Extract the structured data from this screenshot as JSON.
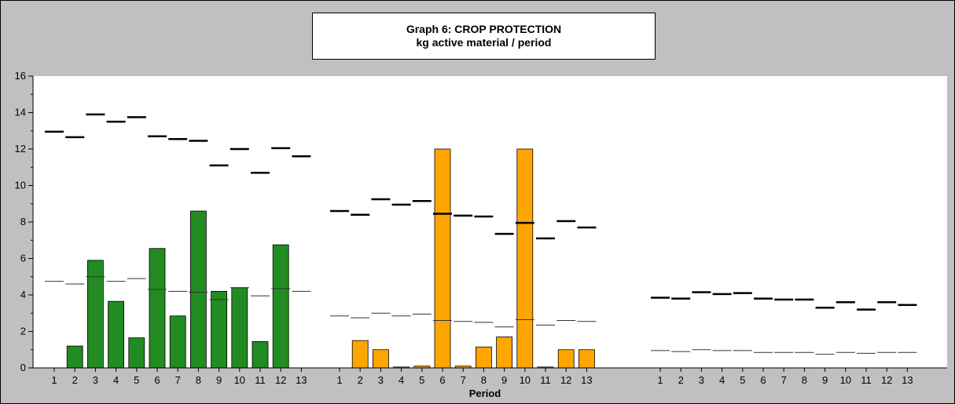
{
  "chart_data": {
    "type": "bar",
    "title": "Graph 6: CROP PROTECTION",
    "subtitle": "kg active material / period",
    "xlabel": "Period",
    "ylabel": "",
    "ylim": [
      0,
      16
    ],
    "y_ticks": [
      "0",
      "2",
      "4",
      "6",
      "8",
      "10",
      "12",
      "14",
      "16"
    ],
    "categories": [
      "1",
      "2",
      "3",
      "4",
      "5",
      "6",
      "7",
      "8",
      "9",
      "10",
      "11",
      "12",
      "13"
    ],
    "grid": false,
    "legend": "none",
    "groups": [
      {
        "bar_color": "#228b22",
        "values": [
          0,
          1.2,
          5.9,
          3.65,
          1.65,
          6.55,
          2.85,
          8.6,
          4.2,
          4.4,
          1.45,
          6.75,
          0
        ],
        "upper_marks": [
          12.95,
          12.65,
          13.9,
          13.5,
          13.75,
          12.7,
          12.55,
          12.45,
          11.1,
          12.0,
          10.7,
          12.05,
          11.6
        ],
        "lower_marks": [
          4.75,
          4.6,
          5.0,
          4.75,
          4.9,
          4.3,
          4.2,
          4.15,
          3.75,
          4.4,
          3.95,
          4.35,
          4.2
        ]
      },
      {
        "bar_color": "#ffa500",
        "values": [
          0,
          1.5,
          1.0,
          0.05,
          0.1,
          12.0,
          0.1,
          1.15,
          1.7,
          12.0,
          0.05,
          1.0,
          1.0
        ],
        "upper_marks": [
          8.6,
          8.4,
          9.25,
          8.95,
          9.15,
          8.45,
          8.35,
          8.3,
          7.35,
          7.95,
          7.1,
          8.05,
          7.7
        ],
        "lower_marks": [
          2.85,
          2.75,
          3.0,
          2.85,
          2.95,
          2.6,
          2.55,
          2.5,
          2.25,
          2.65,
          2.35,
          2.6,
          2.55
        ]
      },
      {
        "bar_color": "#8a8a8a",
        "values": [
          0,
          0,
          0,
          0,
          0,
          0,
          0,
          0,
          0,
          0,
          0,
          0,
          0
        ],
        "upper_marks": [
          3.85,
          3.8,
          4.15,
          4.05,
          4.1,
          3.8,
          3.75,
          3.75,
          3.3,
          3.6,
          3.2,
          3.6,
          3.45
        ],
        "lower_marks": [
          0.95,
          0.9,
          1.0,
          0.95,
          0.95,
          0.85,
          0.85,
          0.85,
          0.75,
          0.85,
          0.8,
          0.85,
          0.85
        ]
      }
    ]
  }
}
